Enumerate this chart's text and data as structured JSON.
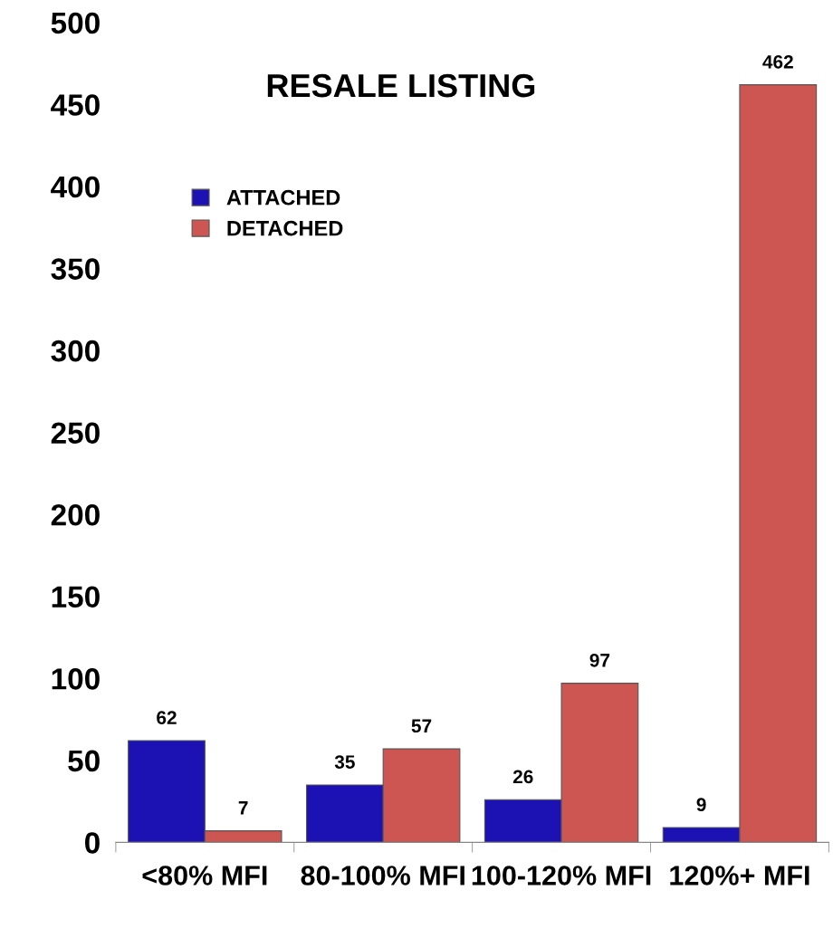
{
  "chart_data": {
    "type": "bar",
    "title": "RESALE LISTING",
    "categories": [
      "<80% MFI",
      "80-100% MFI",
      "100-120% MFI",
      "120%+ MFI"
    ],
    "series": [
      {
        "name": "ATTACHED",
        "color": "#1c12b4",
        "values": [
          62,
          35,
          26,
          9
        ]
      },
      {
        "name": "DETACHED",
        "color": "#cd5552",
        "values": [
          7,
          57,
          97,
          462
        ]
      }
    ],
    "ylim": [
      0,
      500
    ],
    "yticks": [
      0,
      50,
      100,
      150,
      200,
      250,
      300,
      350,
      400,
      450,
      500
    ],
    "data_labels": true,
    "legend": "top left",
    "grid": false
  }
}
